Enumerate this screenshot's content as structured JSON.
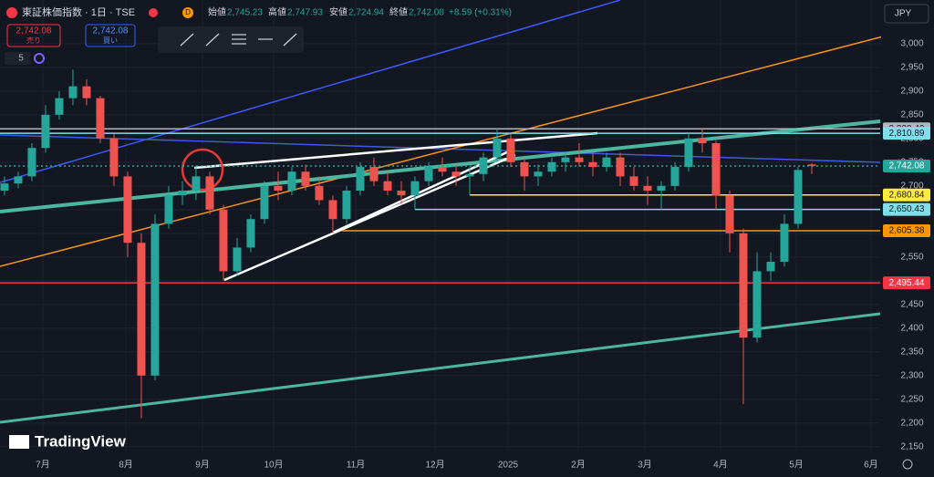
{
  "header": {
    "symbol": "東証株価指数 · 1日 · TSE",
    "badge": "D",
    "open_label": "始値",
    "open": "2,745.23",
    "high_label": "高値",
    "high": "2,747.93",
    "low_label": "安値",
    "low": "2,724.94",
    "close_label": "終値",
    "close": "2,742.08",
    "change": "+8.59 (+0.31%)",
    "sell_price": "2,742.08",
    "sell_label": "売り",
    "buy_price": "2,742.08",
    "buy_label": "買い",
    "indicator": "5",
    "currency": "JPY",
    "brand": "TradingView"
  },
  "chart_data": {
    "type": "candlestick",
    "up_color": "#26a69a",
    "down_color": "#ef5350",
    "ohlc": [
      [
        2690,
        2720,
        2680,
        2705
      ],
      [
        2705,
        2730,
        2695,
        2720
      ],
      [
        2720,
        2790,
        2710,
        2780
      ],
      [
        2780,
        2870,
        2770,
        2850
      ],
      [
        2850,
        2900,
        2840,
        2885
      ],
      [
        2885,
        2945,
        2870,
        2910
      ],
      [
        2910,
        2925,
        2870,
        2885
      ],
      [
        2885,
        2890,
        2790,
        2800
      ],
      [
        2800,
        2810,
        2700,
        2720
      ],
      [
        2720,
        2730,
        2550,
        2580
      ],
      [
        2580,
        2600,
        2210,
        2300
      ],
      [
        2300,
        2640,
        2290,
        2620
      ],
      [
        2620,
        2700,
        2610,
        2680
      ],
      [
        2680,
        2710,
        2660,
        2690
      ],
      [
        2690,
        2740,
        2670,
        2720
      ],
      [
        2720,
        2730,
        2640,
        2650
      ],
      [
        2650,
        2660,
        2500,
        2520
      ],
      [
        2520,
        2590,
        2510,
        2570
      ],
      [
        2570,
        2640,
        2560,
        2630
      ],
      [
        2630,
        2710,
        2620,
        2700
      ],
      [
        2700,
        2730,
        2670,
        2690
      ],
      [
        2690,
        2740,
        2680,
        2730
      ],
      [
        2730,
        2745,
        2690,
        2700
      ],
      [
        2700,
        2720,
        2660,
        2670
      ],
      [
        2670,
        2680,
        2600,
        2630
      ],
      [
        2630,
        2700,
        2620,
        2690
      ],
      [
        2690,
        2750,
        2680,
        2740
      ],
      [
        2740,
        2760,
        2700,
        2710
      ],
      [
        2710,
        2730,
        2680,
        2690
      ],
      [
        2690,
        2710,
        2660,
        2680
      ],
      [
        2680,
        2720,
        2650,
        2710
      ],
      [
        2710,
        2750,
        2700,
        2740
      ],
      [
        2740,
        2760,
        2720,
        2730
      ],
      [
        2730,
        2745,
        2700,
        2720
      ],
      [
        2720,
        2740,
        2680,
        2725
      ],
      [
        2725,
        2770,
        2710,
        2760
      ],
      [
        2760,
        2820,
        2750,
        2800
      ],
      [
        2800,
        2810,
        2740,
        2750
      ],
      [
        2750,
        2760,
        2690,
        2720
      ],
      [
        2720,
        2745,
        2700,
        2730
      ],
      [
        2730,
        2760,
        2720,
        2750
      ],
      [
        2750,
        2770,
        2730,
        2760
      ],
      [
        2760,
        2790,
        2740,
        2750
      ],
      [
        2750,
        2770,
        2720,
        2740
      ],
      [
        2740,
        2770,
        2730,
        2760
      ],
      [
        2760,
        2770,
        2700,
        2720
      ],
      [
        2720,
        2740,
        2690,
        2700
      ],
      [
        2700,
        2720,
        2660,
        2690
      ],
      [
        2690,
        2710,
        2650,
        2700
      ],
      [
        2700,
        2750,
        2690,
        2740
      ],
      [
        2740,
        2810,
        2730,
        2800
      ],
      [
        2800,
        2820,
        2770,
        2790
      ],
      [
        2790,
        2795,
        2650,
        2680
      ],
      [
        2680,
        2690,
        2560,
        2600
      ],
      [
        2600,
        2610,
        2240,
        2380
      ],
      [
        2380,
        2560,
        2370,
        2520
      ],
      [
        2520,
        2560,
        2500,
        2540
      ],
      [
        2540,
        2640,
        2530,
        2620
      ],
      [
        2620,
        2740,
        2610,
        2733.49
      ],
      [
        2745.23,
        2747.93,
        2724.94,
        2742.08
      ]
    ],
    "xlim": [
      -0.33,
      64
    ],
    "xticks": [
      {
        "value": 2.8,
        "label": "7月"
      },
      {
        "value": 8.87,
        "label": "8月"
      },
      {
        "value": 14.47,
        "label": "9月"
      },
      {
        "value": 19.67,
        "label": "10月"
      },
      {
        "value": 25.67,
        "label": "11月"
      },
      {
        "value": 31.47,
        "label": "12月"
      },
      {
        "value": 36.8,
        "label": "2025"
      },
      {
        "value": 41.93,
        "label": "2月"
      },
      {
        "value": 46.8,
        "label": "3月"
      },
      {
        "value": 52.33,
        "label": "4月"
      },
      {
        "value": 57.87,
        "label": "5月"
      },
      {
        "value": 63.33,
        "label": "6月"
      }
    ],
    "ylim": [
      2140,
      3092
    ],
    "yticks": [
      {
        "value": 2150,
        "label": "2,150"
      },
      {
        "value": 2200,
        "label": "2,200"
      },
      {
        "value": 2250,
        "label": "2,250"
      },
      {
        "value": 2300,
        "label": "2,300"
      },
      {
        "value": 2350,
        "label": "2,350"
      },
      {
        "value": 2400,
        "label": "2,400"
      },
      {
        "value": 2450,
        "label": "2,450"
      },
      {
        "value": 2500,
        "label": "2,500"
      },
      {
        "value": 2550,
        "label": "2,550"
      },
      {
        "value": 2600,
        "label": "2,600"
      },
      {
        "value": 2650,
        "label": "2,650"
      },
      {
        "value": 2700,
        "label": "2,700"
      },
      {
        "value": 2750,
        "label": "2,750"
      },
      {
        "value": 2800,
        "label": "2,800"
      },
      {
        "value": 2850,
        "label": "2,850"
      },
      {
        "value": 2900,
        "label": "2,900"
      },
      {
        "value": 2950,
        "label": "2,950"
      },
      {
        "value": 3000,
        "label": "3,000"
      }
    ],
    "grid": true,
    "levels": [
      {
        "value": 2820.4,
        "label": "2,820.40",
        "color": "#b2b5be"
      },
      {
        "value": 2810.89,
        "label": "2,810.89",
        "color": "#80deea"
      },
      {
        "value": 2742.08,
        "label": "2,742.08",
        "color": "#26a69a"
      },
      {
        "value": 2680.84,
        "label": "2,680.84",
        "color": "#ffeb3b",
        "from": 34
      },
      {
        "value": 2650.43,
        "label": "2,650.43",
        "color": "#80deea",
        "from": 30
      },
      {
        "value": 2605.38,
        "label": "2,605.38",
        "color": "#ff9800",
        "from": 24.67
      },
      {
        "value": 2495.44,
        "label": "2,495.44",
        "color": "#f23645"
      }
    ]
  }
}
